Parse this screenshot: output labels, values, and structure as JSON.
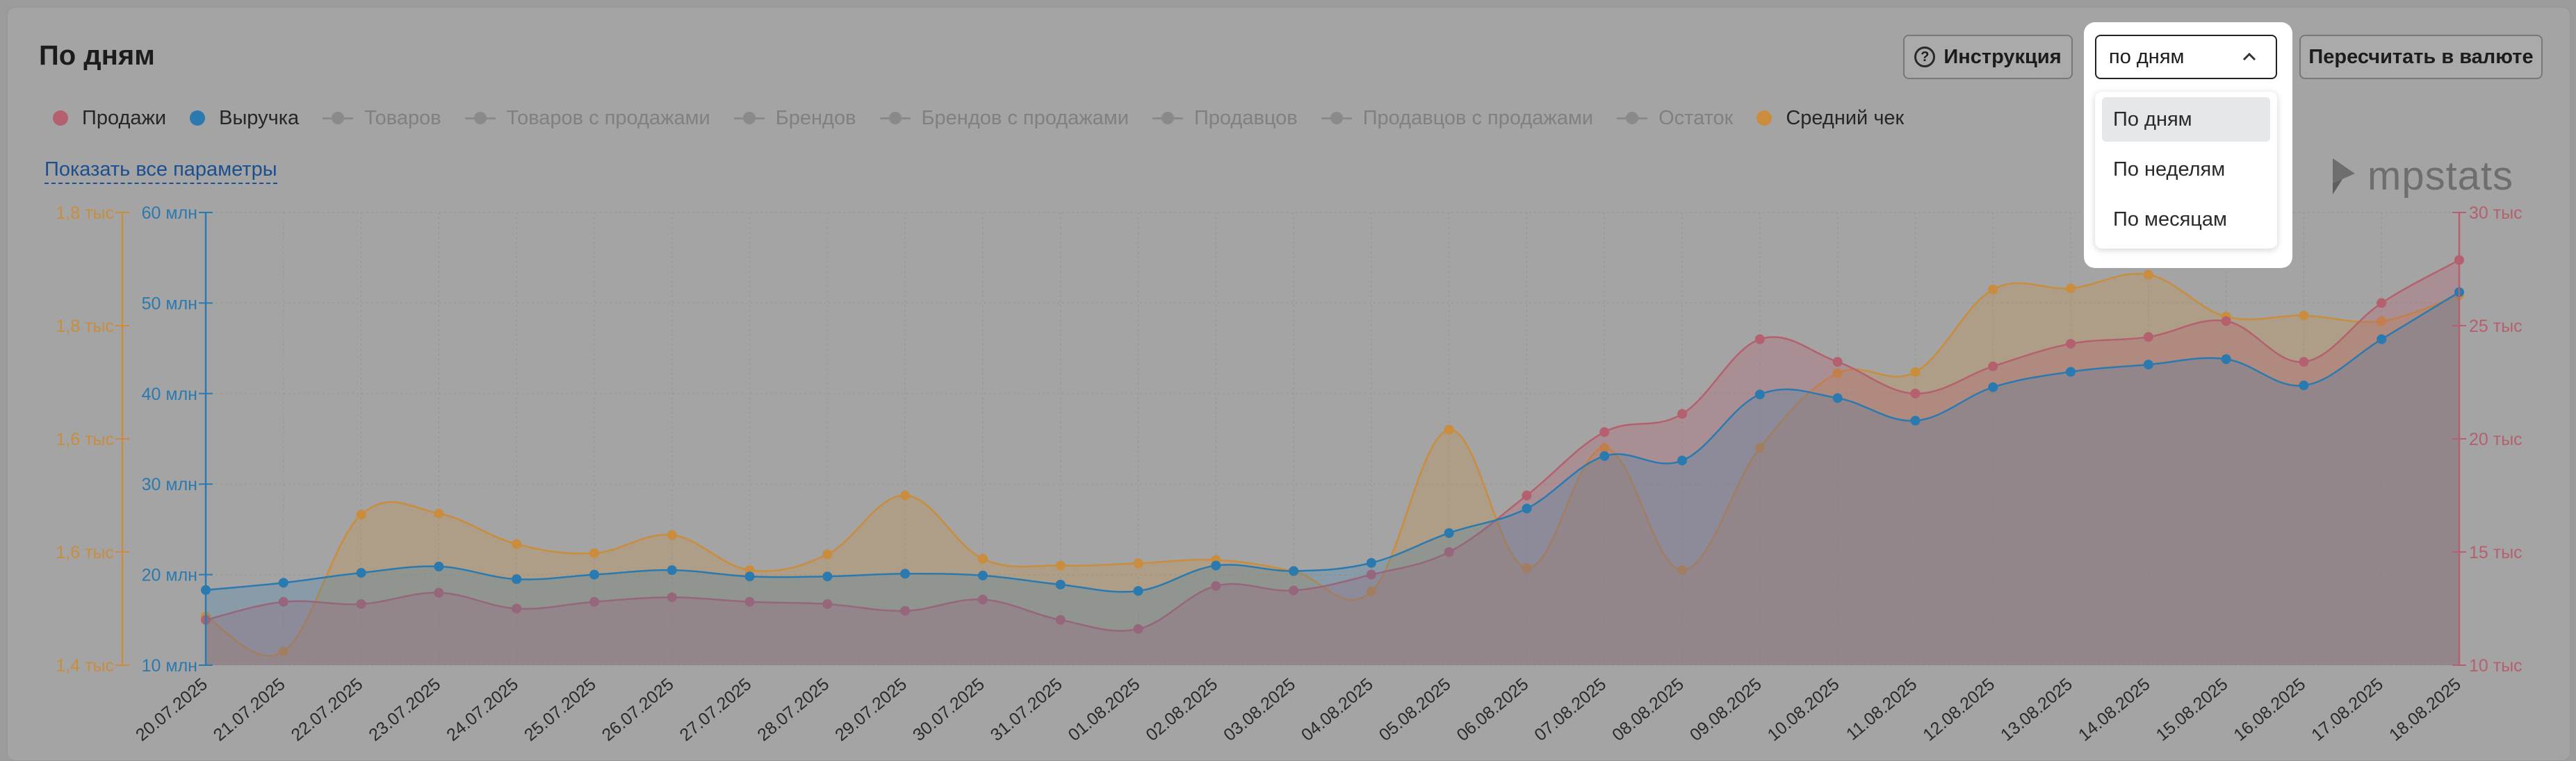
{
  "header": {
    "title": "По дням",
    "help_label": "Инструкция",
    "recalc_label": "Пересчитать в валюте",
    "show_all_label": "Показать все параметры"
  },
  "period_select": {
    "selected": "по дням",
    "options": [
      "По дням",
      "По неделям",
      "По месяцам"
    ],
    "highlighted": "По дням"
  },
  "watermark": "mpstats",
  "legend": [
    {
      "label": "Продажи",
      "active": true,
      "color": "#b5606e"
    },
    {
      "label": "Выручка",
      "active": true,
      "color": "#2a7ab0"
    },
    {
      "label": "Товаров",
      "active": false
    },
    {
      "label": "Товаров с продажами",
      "active": false
    },
    {
      "label": "Брендов",
      "active": false
    },
    {
      "label": "Брендов с продажами",
      "active": false
    },
    {
      "label": "Продавцов",
      "active": false
    },
    {
      "label": "Продавцов с продажами",
      "active": false
    },
    {
      "label": "Остаток",
      "active": false
    },
    {
      "label": "Средний чек",
      "active": true,
      "color": "#c98d3d"
    }
  ],
  "chart_data": {
    "type": "area",
    "categories": [
      "20.07.2025",
      "21.07.2025",
      "22.07.2025",
      "23.07.2025",
      "24.07.2025",
      "25.07.2025",
      "26.07.2025",
      "27.07.2025",
      "28.07.2025",
      "29.07.2025",
      "30.07.2025",
      "31.07.2025",
      "01.08.2025",
      "02.08.2025",
      "03.08.2025",
      "04.08.2025",
      "05.08.2025",
      "06.08.2025",
      "07.08.2025",
      "08.08.2025",
      "09.08.2025",
      "10.08.2025",
      "11.08.2025",
      "12.08.2025",
      "13.08.2025",
      "14.08.2025",
      "15.08.2025",
      "16.08.2025",
      "17.08.2025",
      "18.08.2025"
    ],
    "axes": {
      "avg_check": {
        "ticks": [
          "1,4 тыс",
          "1,6 тыс",
          "1,6 тыс",
          "1,8 тыс",
          "1,8 тыс"
        ],
        "range": [
          1400,
          1800
        ],
        "color": "#c98d3d"
      },
      "revenue": {
        "ticks": [
          "10 млн",
          "20 млн",
          "30 млн",
          "40 млн",
          "50 млн",
          "60 млн"
        ],
        "range": [
          10000000,
          60000000
        ],
        "color": "#2a7ab0"
      },
      "sales": {
        "ticks": [
          "10 тыс",
          "15 тыс",
          "20 тыс",
          "25 тыс",
          "30 тыс"
        ],
        "range": [
          10000,
          30000
        ],
        "color": "#b5606e"
      }
    },
    "series": [
      {
        "name": "Средний чек",
        "axis": "avg_check",
        "color": "#c98d3d",
        "values": [
          1443,
          1412,
          1533,
          1534,
          1507,
          1499,
          1515,
          1484,
          1498,
          1550,
          1494,
          1488,
          1490,
          1493,
          1483,
          1465,
          1608,
          1486,
          1592,
          1484,
          1592,
          1658,
          1659,
          1732,
          1733,
          1745,
          1708,
          1709,
          1704,
          1727
        ]
      },
      {
        "name": "Продажи",
        "axis": "sales",
        "color": "#b5606e",
        "values": [
          12000,
          12800,
          12700,
          13200,
          12500,
          12800,
          13000,
          12800,
          12700,
          12400,
          12900,
          12000,
          11600,
          13500,
          13300,
          14000,
          15000,
          17500,
          20300,
          21100,
          24400,
          23400,
          22000,
          23200,
          24200,
          24500,
          25200,
          23400,
          26000,
          27900
        ]
      },
      {
        "name": "Выручка",
        "axis": "revenue",
        "color": "#2a7ab0",
        "values": [
          18300,
          19100,
          20200,
          20900,
          19500,
          20000,
          20500,
          19800,
          19800,
          20100,
          19900,
          18900,
          18200,
          21000,
          20400,
          21300,
          24600,
          27300,
          33100,
          32600,
          39900,
          39500,
          37000,
          40700,
          42400,
          43200,
          43800,
          40900,
          46000,
          51200
        ]
      }
    ],
    "revenue_unit_note": "values for Выручка in тыс.",
    "grid": true,
    "legend_position": "top-left"
  }
}
